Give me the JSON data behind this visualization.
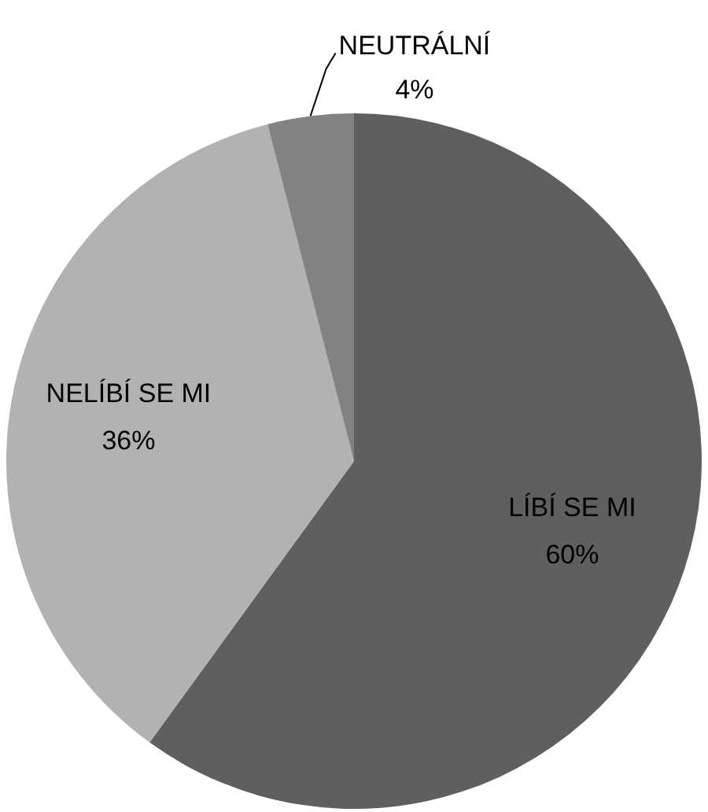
{
  "chart_data": {
    "type": "pie",
    "categories": [
      "LÍBÍ SE MI",
      "NELÍBÍ SE MI",
      "NEUTRÁLNÍ"
    ],
    "values": [
      60,
      36,
      4
    ],
    "colors": [
      "#5f5f5f",
      "#b2b2b2",
      "#828282"
    ],
    "value_labels": [
      "60%",
      "36%",
      "4%"
    ],
    "legend": false
  }
}
